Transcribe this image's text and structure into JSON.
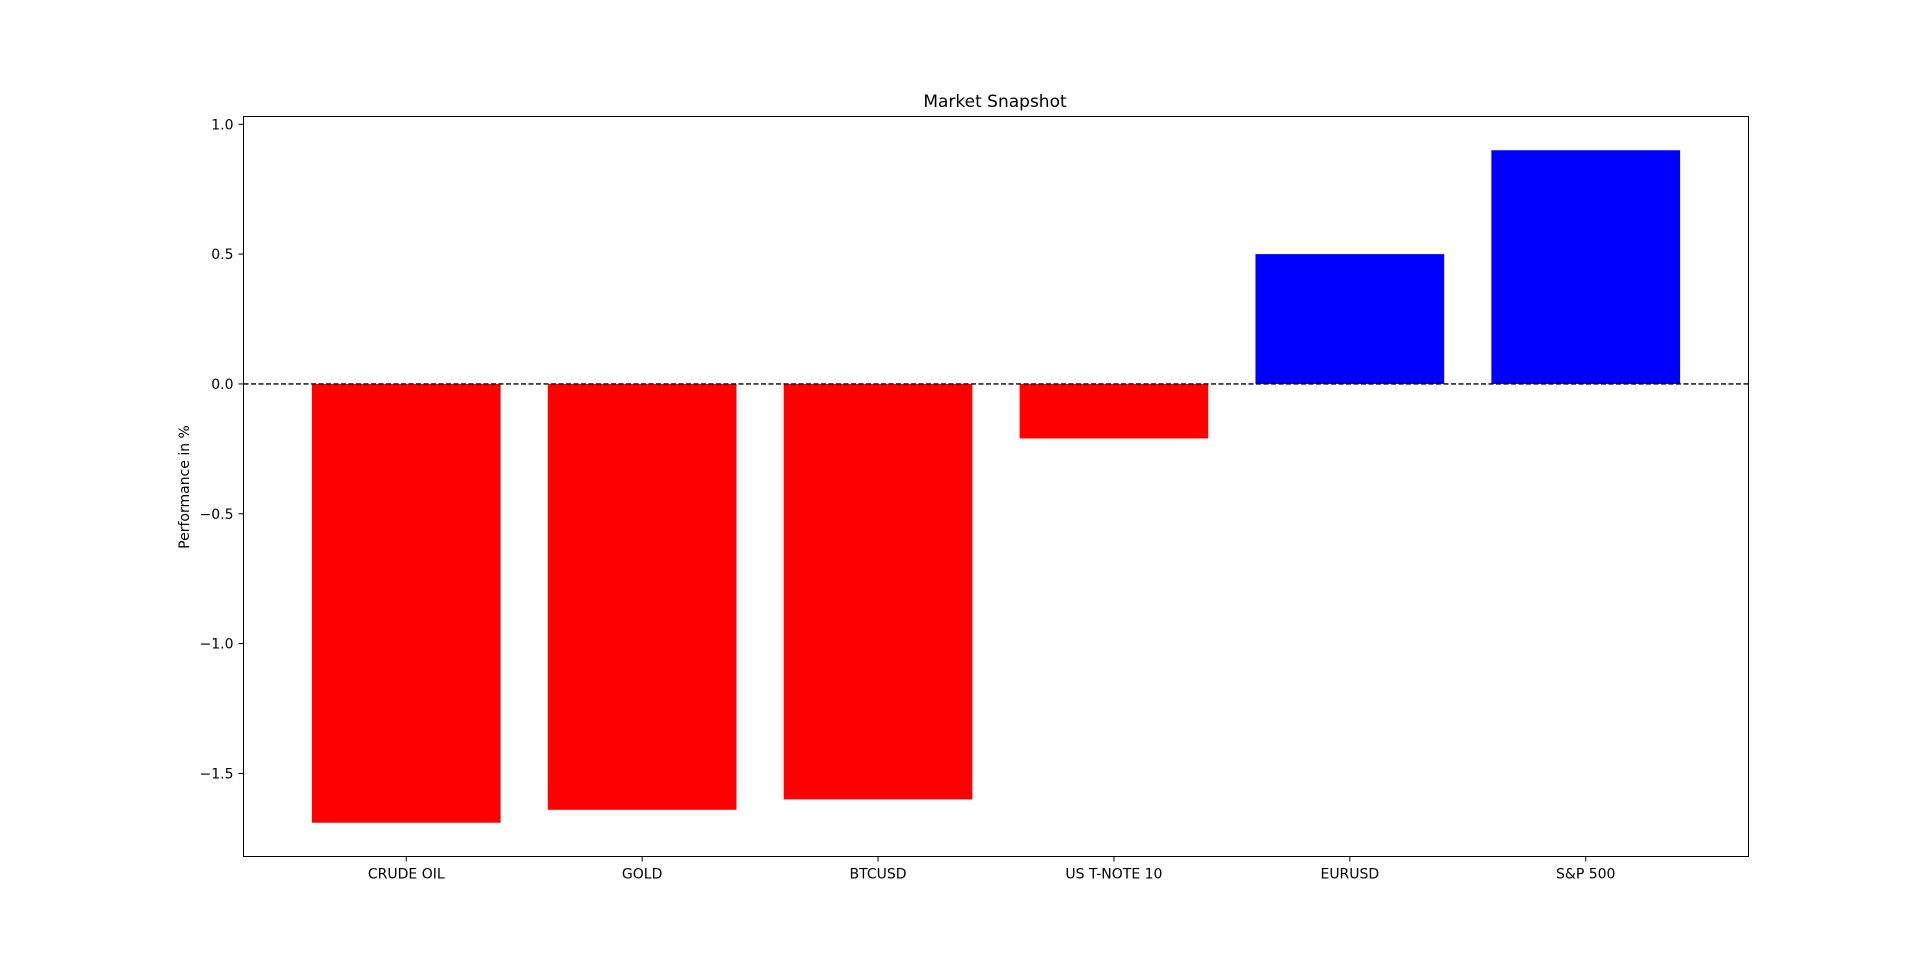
{
  "chart_data": {
    "type": "bar",
    "title": "Market Snapshot",
    "xlabel": "",
    "ylabel": "Performance in %",
    "categories": [
      "CRUDE OIL",
      "GOLD",
      "BTCUSD",
      "US T-NOTE 10",
      "EURUSD",
      "S&P 500"
    ],
    "values": [
      -1.69,
      -1.64,
      -1.6,
      -0.21,
      0.5,
      0.9
    ],
    "ylim": [
      -1.82,
      1.03
    ],
    "yticks": [
      1.0,
      0.5,
      0.0,
      -0.5,
      -1.0,
      -1.5
    ],
    "ytick_labels": [
      "1.0",
      "0.5",
      "0.0",
      "−0.5",
      "−1.0",
      "−1.5"
    ],
    "colors": {
      "negative": "#ff0000",
      "positive": "#0000ff",
      "zero_line": "#000000"
    },
    "zero_line_style": "dashed",
    "grid": false,
    "legend": "none"
  }
}
